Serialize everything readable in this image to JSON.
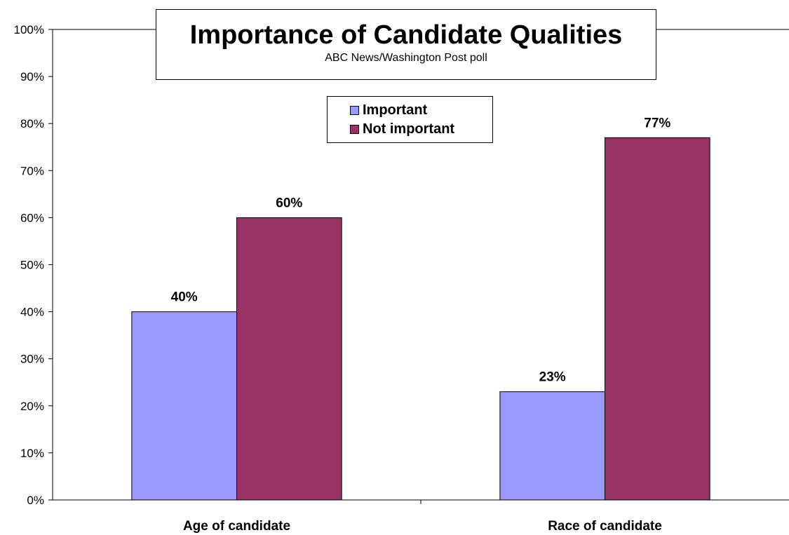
{
  "chart_data": {
    "type": "bar",
    "title": "Importance of Candidate Qualities",
    "subtitle": "ABC News/Washington Post poll",
    "categories": [
      "Age of candidate",
      "Race of candidate"
    ],
    "series": [
      {
        "name": "Important",
        "values": [
          40,
          23
        ],
        "color": "#9999FF",
        "labels": [
          "40%",
          "23%"
        ]
      },
      {
        "name": "Not important",
        "values": [
          60,
          77
        ],
        "color": "#993366",
        "labels": [
          "60%",
          "77%"
        ]
      }
    ],
    "ylim": [
      0,
      100
    ],
    "yticks": [
      0,
      10,
      20,
      30,
      40,
      50,
      60,
      70,
      80,
      90,
      100
    ],
    "ytick_labels": [
      "0%",
      "10%",
      "20%",
      "30%",
      "40%",
      "50%",
      "60%",
      "70%",
      "80%",
      "90%",
      "100%"
    ],
    "grid": false,
    "legend_position": "top-center"
  }
}
